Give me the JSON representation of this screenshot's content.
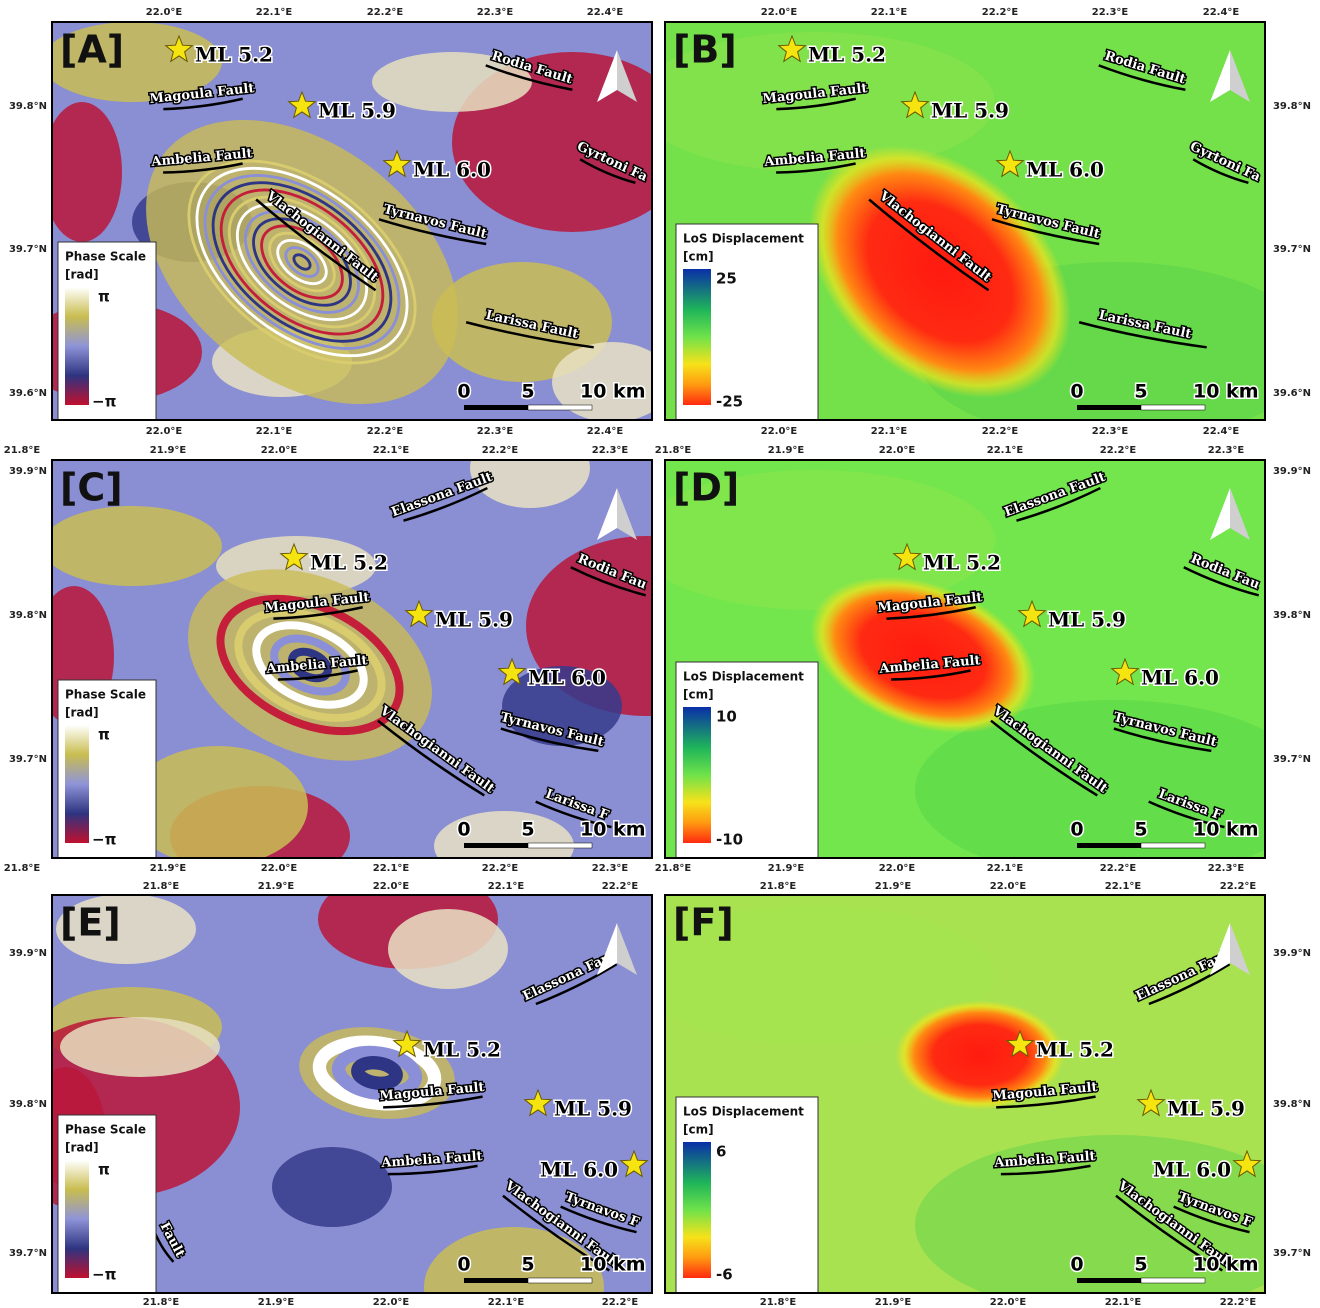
{
  "panels": [
    {
      "label": "[A]",
      "top_axis": [
        "22.0°E",
        "22.1°E",
        "22.2°E",
        "22.3°E",
        "22.4°E"
      ],
      "bottom_axis": [
        "22.0°E",
        "22.1°E",
        "22.2°E",
        "22.3°E",
        "22.4°E"
      ],
      "side_axis": [
        "39.8°N",
        "39.7°N",
        "39.6°N"
      ],
      "events": [
        "ML 5.2",
        "ML 5.9",
        "ML 6.0"
      ],
      "faults": [
        "Rodia Fault",
        "Magoula Fault",
        "Ambelia Fault",
        "Gyrtoni Fa",
        "Tyrnavos Fault",
        "Vlachogianni Fault",
        "Larissa Fault"
      ],
      "legend": {
        "title": "Phase Scale",
        "unit": "[rad]",
        "max": "π",
        "min": "−π"
      },
      "scale": [
        "0",
        "5",
        "10 km"
      ]
    },
    {
      "label": "[B]",
      "top_axis": [
        "22.0°E",
        "22.1°E",
        "22.2°E",
        "22.3°E",
        "22.4°E"
      ],
      "bottom_axis": [
        "22.0°E",
        "22.1°E",
        "22.2°E",
        "22.3°E",
        "22.4°E"
      ],
      "side_axis": [
        "39.8°N",
        "39.7°N",
        "39.6°N"
      ],
      "events": [
        "ML 5.2",
        "ML 5.9",
        "ML 6.0"
      ],
      "faults": [
        "Rodia Fault",
        "Magoula Fault",
        "Ambelia Fault",
        "Gyrtoni Fa",
        "Tyrnavos Fault",
        "Vlachogianni Fault",
        "Larissa Fault"
      ],
      "legend": {
        "title": "LoS Displacement",
        "unit": "[cm]",
        "max": 25,
        "min": -25
      },
      "scale": [
        "0",
        "5",
        "10 km"
      ]
    },
    {
      "label": "[C]",
      "top_axis": [
        "21.8°E",
        "21.9°E",
        "22.0°E",
        "22.1°E",
        "22.2°E",
        "22.3°E"
      ],
      "bottom_axis": [
        "21.8°E",
        "21.9°E",
        "22.0°E",
        "22.1°E",
        "22.2°E",
        "22.3°E"
      ],
      "side_axis": [
        "39.9°N",
        "39.8°N",
        "39.7°N"
      ],
      "events": [
        "ML 5.2",
        "ML 5.9",
        "ML 6.0"
      ],
      "faults": [
        "Elassona Fault",
        "Rodia Fau",
        "Magoula Fault",
        "Ambelia Fault",
        "Vlachogianni Fault",
        "Tyrnavos Fault",
        "Larissa F"
      ],
      "legend": {
        "title": "Phase Scale",
        "unit": "[rad]",
        "max": "π",
        "min": "−π"
      },
      "scale": [
        "0",
        "5",
        "10 km"
      ]
    },
    {
      "label": "[D]",
      "top_axis": [
        "21.8°E",
        "21.9°E",
        "22.0°E",
        "22.1°E",
        "22.2°E",
        "22.3°E"
      ],
      "bottom_axis": [
        "21.8°E",
        "21.9°E",
        "22.0°E",
        "22.1°E",
        "22.2°E",
        "22.3°E"
      ],
      "side_axis": [
        "39.9°N",
        "39.8°N",
        "39.7°N"
      ],
      "events": [
        "ML 5.2",
        "ML 5.9",
        "ML 6.0"
      ],
      "faults": [
        "Elassona Fault",
        "Rodia Fau",
        "Magoula Fault",
        "Ambelia Fault",
        "Vlachogianni Fault",
        "Tyrnavos Fault",
        "Larissa F"
      ],
      "legend": {
        "title": "LoS Displacement",
        "unit": "[cm]",
        "max": 10,
        "min": -10
      },
      "scale": [
        "0",
        "5",
        "10 km"
      ]
    },
    {
      "label": "[E]",
      "top_axis": [
        "21.8°E",
        "21.9°E",
        "22.0°E",
        "22.1°E",
        "22.2°E"
      ],
      "bottom_axis": [
        "21.8°E",
        "21.9°E",
        "22.0°E",
        "22.1°E",
        "22.2°E"
      ],
      "side_axis": [
        "39.9°N",
        "39.8°N",
        "39.7°N"
      ],
      "events": [
        "ML 5.2",
        "ML 5.9",
        "ML 6.0"
      ],
      "faults": [
        "Elassona Fault",
        "Magoula Fault",
        "Ambelia Fault",
        "Vlachogianni Fault",
        "Tyrnavos F",
        "Fault"
      ],
      "legend": {
        "title": "Phase Scale",
        "unit": "[rad]",
        "max": "π",
        "min": "−π"
      },
      "scale": [
        "0",
        "5",
        "10 km"
      ]
    },
    {
      "label": "[F]",
      "top_axis": [
        "21.8°E",
        "21.9°E",
        "22.0°E",
        "22.1°E",
        "22.2°E"
      ],
      "bottom_axis": [
        "21.8°E",
        "21.9°E",
        "22.0°E",
        "22.1°E",
        "22.2°E"
      ],
      "side_axis": [
        "39.9°N",
        "39.8°N",
        "39.7°N"
      ],
      "events": [
        "ML 5.2",
        "ML 5.9",
        "ML 6.0"
      ],
      "faults": [
        "Elassona Fault",
        "Magoula Fault",
        "Ambelia Fault",
        "Vlachogianni Fault",
        "Tyrnavos F"
      ],
      "legend": {
        "title": "LoS Displacement",
        "unit": "[cm]",
        "max": 6,
        "min": -6
      },
      "scale": [
        "0",
        "5",
        "10 km"
      ]
    }
  ]
}
